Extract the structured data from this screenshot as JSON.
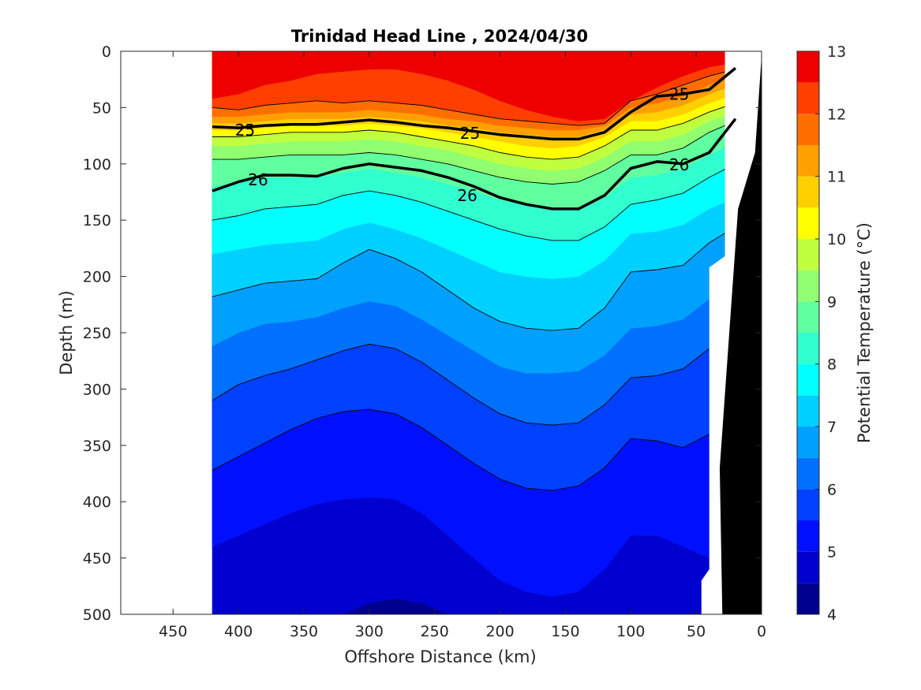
{
  "chart_data": {
    "type": "contour",
    "title": "Trinidad Head Line , 2024/04/30",
    "xlabel": "Offshore Distance (km)",
    "ylabel": "Depth (m)",
    "xlim": [
      490,
      0
    ],
    "ylim": [
      0,
      500
    ],
    "x_ticks": [
      "450",
      "400",
      "350",
      "300",
      "250",
      "200",
      "150",
      "100",
      "50",
      "0"
    ],
    "y_ticks": [
      "0",
      "50",
      "100",
      "150",
      "200",
      "250",
      "300",
      "350",
      "400",
      "450",
      "500"
    ],
    "colorbar": {
      "label": "Potential Temperature (°C)",
      "min": 4,
      "max": 13,
      "ticks": [
        "4",
        "5",
        "6",
        "7",
        "8",
        "9",
        "10",
        "11",
        "12",
        "13"
      ],
      "levels": [
        4,
        4.5,
        5,
        5.5,
        6,
        6.5,
        7,
        7.5,
        8,
        8.5,
        9,
        9.5,
        10,
        10.5,
        11,
        11.5,
        12,
        12.5,
        13
      ],
      "colors": [
        "#00008f",
        "#0000cf",
        "#0010ff",
        "#0040ff",
        "#0070ff",
        "#00a0ff",
        "#00d0ff",
        "#00ffff",
        "#30ffcf",
        "#60ff9f",
        "#90ff70",
        "#c0ff40",
        "#ffff00",
        "#ffcf00",
        "#ff9f00",
        "#ff6f00",
        "#ff3f00",
        "#ef0000",
        "#bf0000"
      ]
    },
    "section_x_range_km": [
      420,
      20
    ],
    "station_x_km": [
      420,
      400,
      380,
      360,
      340,
      320,
      300,
      280,
      260,
      240,
      220,
      200,
      180,
      160,
      140,
      120,
      100,
      80,
      60,
      40,
      20
    ],
    "isotherm_depths_m": {
      "12.5": [
        42,
        38,
        30,
        26,
        20,
        18,
        16,
        16,
        20,
        26,
        34,
        44,
        52,
        58,
        62,
        60,
        44,
        32,
        22,
        14,
        10
      ],
      "12": [
        50,
        52,
        48,
        46,
        44,
        46,
        44,
        46,
        48,
        52,
        56,
        60,
        62,
        64,
        66,
        64,
        44,
        38,
        30,
        22,
        16
      ],
      "11.5": [
        58,
        58,
        56,
        54,
        54,
        54,
        52,
        54,
        56,
        60,
        62,
        66,
        68,
        70,
        70,
        66,
        50,
        46,
        40,
        30,
        22
      ],
      "11": [
        64,
        64,
        62,
        60,
        60,
        60,
        58,
        60,
        62,
        66,
        68,
        72,
        74,
        76,
        76,
        70,
        56,
        54,
        48,
        38,
        30
      ],
      "10.5": [
        70,
        70,
        68,
        66,
        66,
        66,
        64,
        66,
        68,
        72,
        76,
        80,
        84,
        86,
        84,
        76,
        62,
        62,
        56,
        46,
        38
      ],
      "10": [
        76,
        76,
        74,
        72,
        72,
        72,
        70,
        72,
        76,
        80,
        84,
        90,
        94,
        96,
        94,
        84,
        70,
        70,
        64,
        54,
        46
      ],
      "9.5": [
        84,
        84,
        82,
        80,
        80,
        80,
        78,
        80,
        84,
        88,
        94,
        100,
        104,
        106,
        104,
        94,
        80,
        80,
        74,
        62,
        54
      ],
      "9": [
        96,
        96,
        94,
        92,
        92,
        92,
        90,
        92,
        96,
        100,
        106,
        112,
        116,
        118,
        116,
        106,
        92,
        92,
        86,
        72,
        62
      ],
      "8.5": [
        120,
        116,
        112,
        112,
        112,
        108,
        104,
        108,
        112,
        118,
        124,
        132,
        136,
        140,
        140,
        130,
        112,
        110,
        104,
        92,
        80
      ],
      "8": [
        150,
        146,
        140,
        138,
        136,
        128,
        124,
        128,
        134,
        142,
        150,
        158,
        164,
        168,
        168,
        156,
        136,
        132,
        126,
        112,
        100
      ],
      "7.5": [
        180,
        176,
        172,
        170,
        168,
        158,
        152,
        158,
        166,
        176,
        186,
        196,
        200,
        202,
        200,
        186,
        162,
        160,
        154,
        140,
        130
      ],
      "7": [
        218,
        212,
        206,
        204,
        202,
        188,
        176,
        184,
        196,
        212,
        228,
        240,
        246,
        248,
        246,
        228,
        196,
        194,
        190,
        170,
        156
      ],
      "6.5": [
        262,
        250,
        242,
        240,
        236,
        228,
        222,
        226,
        238,
        252,
        266,
        280,
        286,
        286,
        284,
        270,
        246,
        244,
        238,
        220,
        200
      ],
      "6": [
        310,
        296,
        288,
        282,
        274,
        266,
        260,
        264,
        276,
        292,
        308,
        322,
        330,
        332,
        330,
        314,
        290,
        288,
        282,
        264,
        244
      ],
      "5.5": [
        372,
        360,
        348,
        336,
        326,
        320,
        318,
        322,
        334,
        350,
        366,
        380,
        388,
        390,
        386,
        370,
        344,
        346,
        352,
        340,
        320
      ],
      "5": [
        440,
        430,
        420,
        410,
        402,
        398,
        396,
        398,
        410,
        430,
        450,
        470,
        480,
        484,
        480,
        460,
        430,
        430,
        440,
        450,
        450
      ],
      "4.5": [
        500,
        500,
        500,
        500,
        500,
        500,
        490,
        486,
        490,
        500,
        500,
        500,
        500,
        500,
        500,
        500,
        500,
        500,
        500,
        500,
        500
      ]
    },
    "density_contours": {
      "25": [
        67,
        68,
        66,
        65,
        65,
        63,
        61,
        63,
        66,
        68,
        71,
        74,
        76,
        78,
        78,
        72,
        54,
        40,
        38,
        34,
        15
      ],
      "26": [
        124,
        116,
        110,
        110,
        111,
        104,
        100,
        103,
        106,
        112,
        120,
        130,
        136,
        140,
        140,
        128,
        104,
        98,
        100,
        90,
        60
      ]
    },
    "contour_labels": [
      {
        "text": "25",
        "x": 395,
        "y": 70
      },
      {
        "text": "25",
        "x": 223,
        "y": 73
      },
      {
        "text": "25",
        "x": 63,
        "y": 38
      },
      {
        "text": "26",
        "x": 385,
        "y": 114
      },
      {
        "text": "26",
        "x": 225,
        "y": 128
      },
      {
        "text": "26",
        "x": 63,
        "y": 101
      }
    ]
  }
}
